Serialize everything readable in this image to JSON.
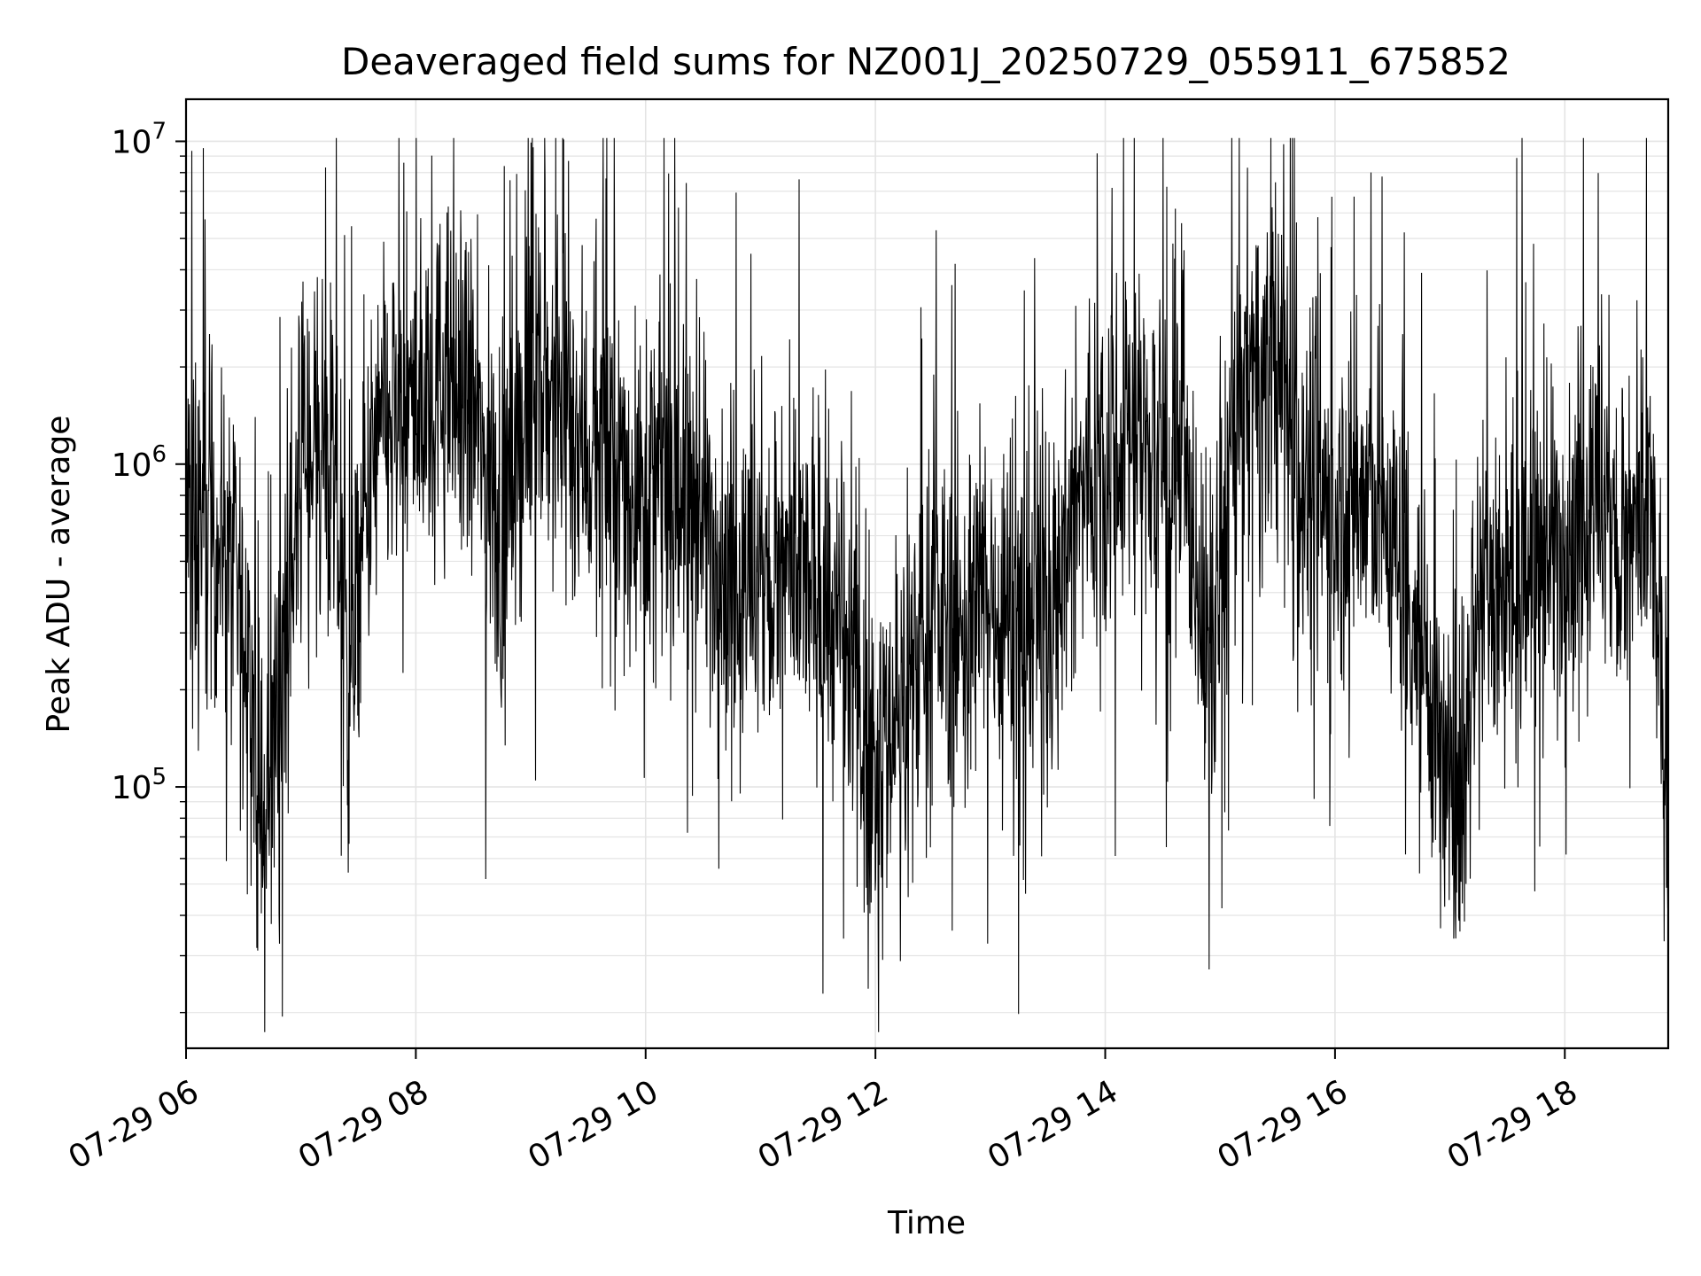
{
  "chart_data": {
    "type": "line",
    "title": "Deaveraged field sums for NZ001J_20250729_055911_675852",
    "xlabel": "Time",
    "ylabel": "Peak ADU - average",
    "yscale": "log",
    "xlim": [
      "2025-07-29T06:00",
      "2025-07-29T18:54"
    ],
    "ylim": [
      15500,
      13500000
    ],
    "grid": true,
    "grid_color": "#e4e4e4",
    "line_color": "#000000",
    "x_ticks": [
      {
        "value": "2025-07-29T06:00",
        "label": "07-29 06"
      },
      {
        "value": "2025-07-29T08:00",
        "label": "07-29 08"
      },
      {
        "value": "2025-07-29T10:00",
        "label": "07-29 10"
      },
      {
        "value": "2025-07-29T12:00",
        "label": "07-29 12"
      },
      {
        "value": "2025-07-29T14:00",
        "label": "07-29 14"
      },
      {
        "value": "2025-07-29T16:00",
        "label": "07-29 16"
      },
      {
        "value": "2025-07-29T18:00",
        "label": "07-29 18"
      }
    ],
    "y_ticks": [
      {
        "value": 100000,
        "base": "10",
        "exp": "5"
      },
      {
        "value": 1000000,
        "base": "10",
        "exp": "6"
      },
      {
        "value": 10000000,
        "base": "10",
        "exp": "7"
      }
    ],
    "series": [
      {
        "points": [
          [
            "2025-07-29T06:00",
            700000
          ],
          [
            "2025-07-29T06:10",
            650000
          ],
          [
            "2025-07-29T06:20",
            600000
          ],
          [
            "2025-07-29T06:30",
            300000
          ],
          [
            "2025-07-29T06:35",
            180000
          ],
          [
            "2025-07-29T06:40",
            60000
          ],
          [
            "2025-07-29T06:45",
            130000
          ],
          [
            "2025-07-29T06:50",
            250000
          ],
          [
            "2025-07-29T07:00",
            1000000
          ],
          [
            "2025-07-29T07:10",
            1300000
          ],
          [
            "2025-07-29T07:20",
            600000
          ],
          [
            "2025-07-29T07:25",
            200000
          ],
          [
            "2025-07-29T07:30",
            400000
          ],
          [
            "2025-07-29T07:40",
            1200000
          ],
          [
            "2025-07-29T08:00",
            1500000
          ],
          [
            "2025-07-29T08:15",
            1800000
          ],
          [
            "2025-07-29T08:30",
            1400000
          ],
          [
            "2025-07-29T08:45",
            600000
          ],
          [
            "2025-07-29T09:00",
            1800000
          ],
          [
            "2025-07-29T09:15",
            1500000
          ],
          [
            "2025-07-29T09:30",
            1100000
          ],
          [
            "2025-07-29T09:45",
            900000
          ],
          [
            "2025-07-29T10:00",
            850000
          ],
          [
            "2025-07-29T10:15",
            800000
          ],
          [
            "2025-07-29T10:30",
            700000
          ],
          [
            "2025-07-29T10:45",
            450000
          ],
          [
            "2025-07-29T11:00",
            400000
          ],
          [
            "2025-07-29T11:15",
            450000
          ],
          [
            "2025-07-29T11:30",
            400000
          ],
          [
            "2025-07-29T11:45",
            250000
          ],
          [
            "2025-07-29T12:00",
            120000
          ],
          [
            "2025-07-29T12:15",
            200000
          ],
          [
            "2025-07-29T12:30",
            350000
          ],
          [
            "2025-07-29T12:45",
            300000
          ],
          [
            "2025-07-29T13:00",
            400000
          ],
          [
            "2025-07-29T13:15",
            350000
          ],
          [
            "2025-07-29T13:30",
            400000
          ],
          [
            "2025-07-29T13:45",
            700000
          ],
          [
            "2025-07-29T14:00",
            1200000
          ],
          [
            "2025-07-29T14:15",
            1300000
          ],
          [
            "2025-07-29T14:30",
            1000000
          ],
          [
            "2025-07-29T14:45",
            700000
          ],
          [
            "2025-07-29T14:55",
            200000
          ],
          [
            "2025-07-29T15:05",
            1000000
          ],
          [
            "2025-07-29T15:15",
            1800000
          ],
          [
            "2025-07-29T15:30",
            1900000
          ],
          [
            "2025-07-29T15:45",
            900000
          ],
          [
            "2025-07-29T16:00",
            700000
          ],
          [
            "2025-07-29T16:15",
            800000
          ],
          [
            "2025-07-29T16:30",
            600000
          ],
          [
            "2025-07-29T16:45",
            300000
          ],
          [
            "2025-07-29T17:00",
            90000
          ],
          [
            "2025-07-29T17:05",
            80000
          ],
          [
            "2025-07-29T17:15",
            500000
          ],
          [
            "2025-07-29T17:30",
            400000
          ],
          [
            "2025-07-29T17:45",
            500000
          ],
          [
            "2025-07-29T18:00",
            600000
          ],
          [
            "2025-07-29T18:15",
            800000
          ],
          [
            "2025-07-29T18:30",
            500000
          ],
          [
            "2025-07-29T18:45",
            700000
          ],
          [
            "2025-07-29T18:54",
            80000
          ]
        ]
      }
    ]
  }
}
